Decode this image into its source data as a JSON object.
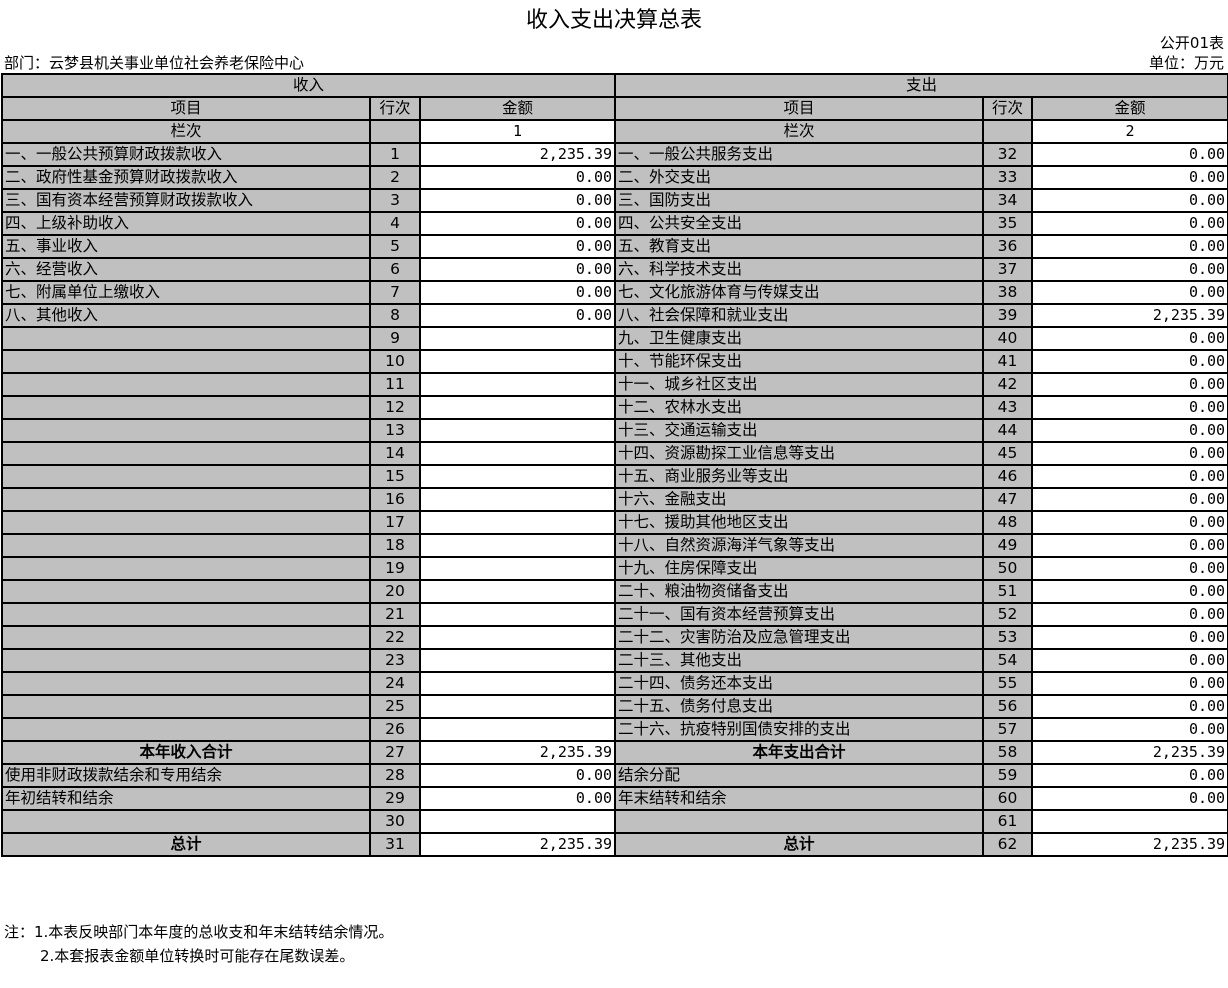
{
  "title": "收入支出决算总表",
  "form_code": "公开01表",
  "department": "部门：云梦县机关事业单位社会养老保险中心",
  "unit": "单位：万元",
  "header": {
    "income": "收入",
    "expense": "支出",
    "item": "项目",
    "row_no": "行次",
    "amount": "金额",
    "column_no": "栏次",
    "income_col": "1",
    "expense_col": "2"
  },
  "rows": [
    {
      "li": "一、一般公共预算财政拨款收入",
      "ln": "1",
      "la": "2,235.39",
      "ri": "一、一般公共服务支出",
      "rn": "32",
      "ra": "0.00"
    },
    {
      "li": "二、政府性基金预算财政拨款收入",
      "ln": "2",
      "la": "0.00",
      "ri": "二、外交支出",
      "rn": "33",
      "ra": "0.00"
    },
    {
      "li": "三、国有资本经营预算财政拨款收入",
      "ln": "3",
      "la": "0.00",
      "ri": "三、国防支出",
      "rn": "34",
      "ra": "0.00"
    },
    {
      "li": "四、上级补助收入",
      "ln": "4",
      "la": "0.00",
      "ri": "四、公共安全支出",
      "rn": "35",
      "ra": "0.00"
    },
    {
      "li": "五、事业收入",
      "ln": "5",
      "la": "0.00",
      "ri": "五、教育支出",
      "rn": "36",
      "ra": "0.00"
    },
    {
      "li": "六、经营收入",
      "ln": "6",
      "la": "0.00",
      "ri": "六、科学技术支出",
      "rn": "37",
      "ra": "0.00"
    },
    {
      "li": "七、附属单位上缴收入",
      "ln": "7",
      "la": "0.00",
      "ri": "七、文化旅游体育与传媒支出",
      "rn": "38",
      "ra": "0.00"
    },
    {
      "li": "八、其他收入",
      "ln": "8",
      "la": "0.00",
      "ri": "八、社会保障和就业支出",
      "rn": "39",
      "ra": "2,235.39"
    },
    {
      "li": "",
      "ln": "9",
      "la": "",
      "ri": "九、卫生健康支出",
      "rn": "40",
      "ra": "0.00"
    },
    {
      "li": "",
      "ln": "10",
      "la": "",
      "ri": "十、节能环保支出",
      "rn": "41",
      "ra": "0.00"
    },
    {
      "li": "",
      "ln": "11",
      "la": "",
      "ri": "十一、城乡社区支出",
      "rn": "42",
      "ra": "0.00"
    },
    {
      "li": "",
      "ln": "12",
      "la": "",
      "ri": "十二、农林水支出",
      "rn": "43",
      "ra": "0.00"
    },
    {
      "li": "",
      "ln": "13",
      "la": "",
      "ri": "十三、交通运输支出",
      "rn": "44",
      "ra": "0.00"
    },
    {
      "li": "",
      "ln": "14",
      "la": "",
      "ri": "十四、资源勘探工业信息等支出",
      "rn": "45",
      "ra": "0.00"
    },
    {
      "li": "",
      "ln": "15",
      "la": "",
      "ri": "十五、商业服务业等支出",
      "rn": "46",
      "ra": "0.00"
    },
    {
      "li": "",
      "ln": "16",
      "la": "",
      "ri": "十六、金融支出",
      "rn": "47",
      "ra": "0.00"
    },
    {
      "li": "",
      "ln": "17",
      "la": "",
      "ri": "十七、援助其他地区支出",
      "rn": "48",
      "ra": "0.00"
    },
    {
      "li": "",
      "ln": "18",
      "la": "",
      "ri": "十八、自然资源海洋气象等支出",
      "rn": "49",
      "ra": "0.00"
    },
    {
      "li": "",
      "ln": "19",
      "la": "",
      "ri": "十九、住房保障支出",
      "rn": "50",
      "ra": "0.00"
    },
    {
      "li": "",
      "ln": "20",
      "la": "",
      "ri": "二十、粮油物资储备支出",
      "rn": "51",
      "ra": "0.00"
    },
    {
      "li": "",
      "ln": "21",
      "la": "",
      "ri": "二十一、国有资本经营预算支出",
      "rn": "52",
      "ra": "0.00"
    },
    {
      "li": "",
      "ln": "22",
      "la": "",
      "ri": "二十二、灾害防治及应急管理支出",
      "rn": "53",
      "ra": "0.00"
    },
    {
      "li": "",
      "ln": "23",
      "la": "",
      "ri": "二十三、其他支出",
      "rn": "54",
      "ra": "0.00"
    },
    {
      "li": "",
      "ln": "24",
      "la": "",
      "ri": "二十四、债务还本支出",
      "rn": "55",
      "ra": "0.00"
    },
    {
      "li": "",
      "ln": "25",
      "la": "",
      "ri": "二十五、债务付息支出",
      "rn": "56",
      "ra": "0.00"
    },
    {
      "li": "",
      "ln": "26",
      "la": "",
      "ri": "二十六、抗疫特别国债安排的支出",
      "rn": "57",
      "ra": "0.00"
    },
    {
      "li": "本年收入合计",
      "ln": "27",
      "la": "2,235.39",
      "ri": "本年支出合计",
      "rn": "58",
      "ra": "2,235.39",
      "bold": true
    },
    {
      "li": "使用非财政拨款结余和专用结余",
      "ln": "28",
      "la": "0.00",
      "ri": "结余分配",
      "rn": "59",
      "ra": "0.00"
    },
    {
      "li": "年初结转和结余",
      "ln": "29",
      "la": "0.00",
      "ri": "年末结转和结余",
      "rn": "60",
      "ra": "0.00"
    },
    {
      "li": "",
      "ln": "30",
      "la": "",
      "ri": "",
      "rn": "61",
      "ra": ""
    },
    {
      "li": "总计",
      "ln": "31",
      "la": "2,235.39",
      "ri": "总计",
      "rn": "62",
      "ra": "2,235.39",
      "bold": true
    }
  ],
  "notes": [
    "注：1.本表反映部门本年度的总收支和年末结转结余情况。",
    "2.本套报表金额单位转换时可能存在尾数误差。"
  ]
}
